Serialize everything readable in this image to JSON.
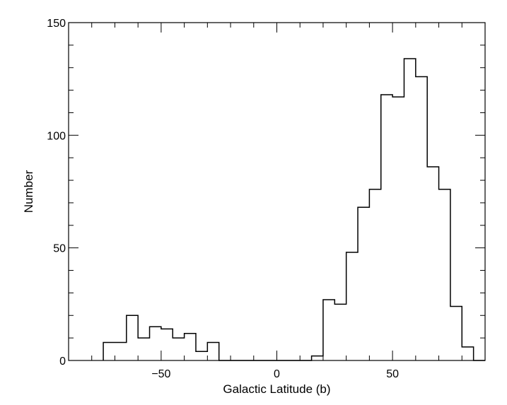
{
  "chart_data": {
    "type": "bar",
    "title": "",
    "xlabel": "Galactic Latitude (b)",
    "ylabel": "Number",
    "xlim": [
      -90,
      90
    ],
    "ylim": [
      0,
      150
    ],
    "xticks": [
      -50,
      0,
      50
    ],
    "yticks": [
      0,
      50,
      100,
      150
    ],
    "x_tick_labels": [
      "−50",
      "0",
      "50"
    ],
    "y_tick_labels": [
      "0",
      "50",
      "100",
      "150"
    ],
    "bin_width": 5,
    "bin_edges": [
      -75,
      -70,
      -65,
      -60,
      -55,
      -50,
      -45,
      -40,
      -35,
      -30,
      -25,
      -20,
      -15,
      -10,
      -5,
      0,
      5,
      10,
      15,
      20,
      25,
      30,
      35,
      40,
      45,
      50,
      55,
      60,
      65,
      70,
      75,
      80,
      85,
      90
    ],
    "values": [
      8,
      8,
      20,
      10,
      15,
      14,
      10,
      12,
      4,
      8,
      0,
      0,
      0,
      0,
      0,
      0,
      0,
      0,
      2,
      27,
      25,
      48,
      68,
      76,
      118,
      117,
      134,
      126,
      86,
      76,
      24,
      6,
      0
    ],
    "color": "#000000",
    "grid": false
  }
}
